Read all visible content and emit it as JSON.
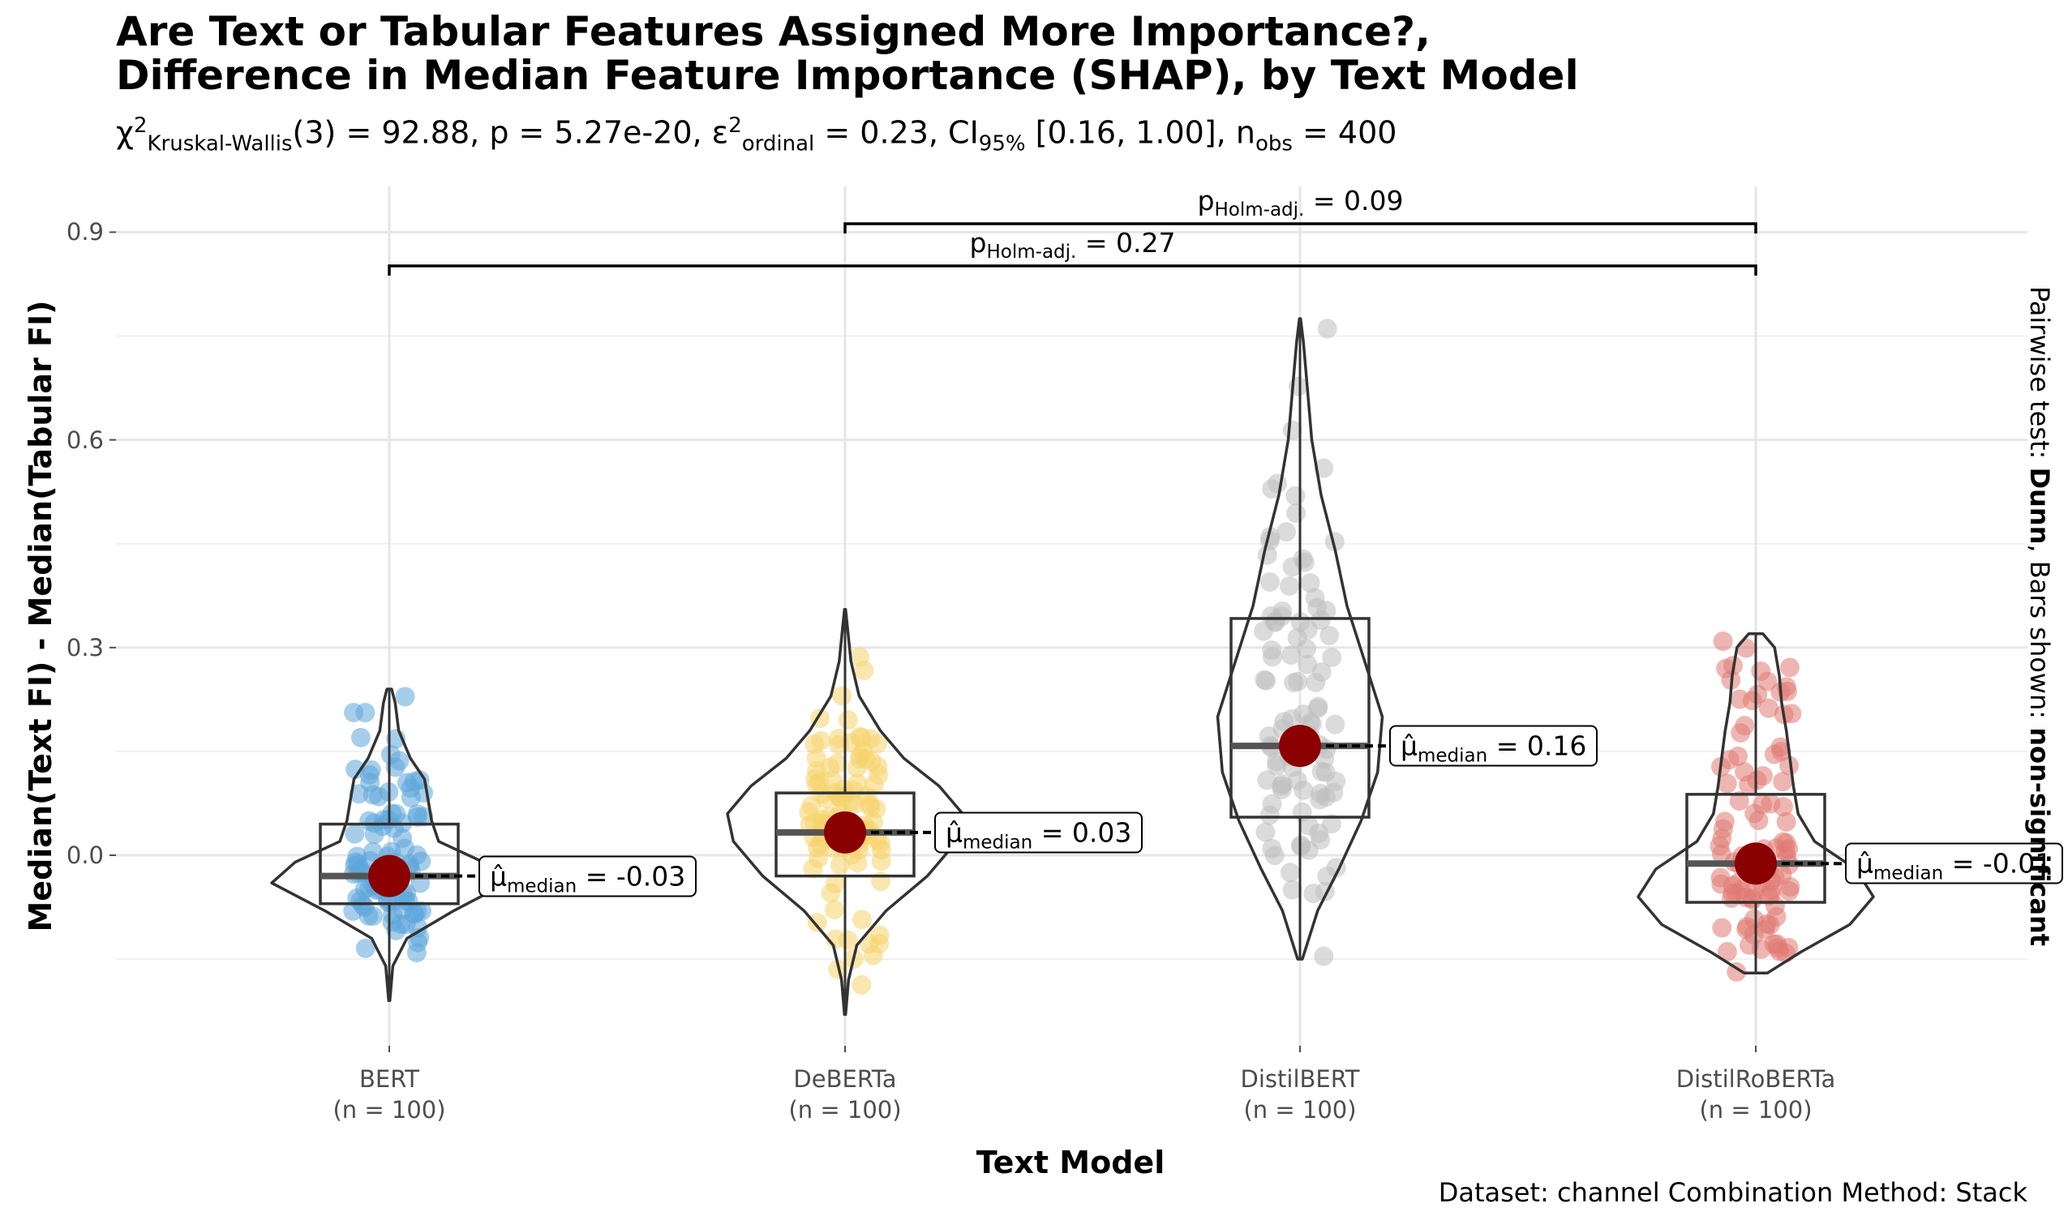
{
  "title": {
    "line1": "Are Text or Tabular Features Assigned More Importance?,",
    "line2": "Difference in Median Feature Importance (SHAP), by Text Model"
  },
  "subtitle": {
    "chi_symbol": "χ",
    "chi_sup": "2",
    "test_sub": "Kruskal-Wallis",
    "stat_part": "(3) = 92.88, p = 5.27e-20, ",
    "eps_symbol": "ε",
    "eps_sup": "2",
    "eps_sub": "ordinal",
    "eps_part": " = 0.23, CI",
    "ci_sub": "95%",
    "ci_part": " [0.16, 1.00], n",
    "n_sub": "obs",
    "n_part": " = 400"
  },
  "axes": {
    "ylabel": "Median(Text FI) - Median(Tabular FI)",
    "xlabel": "Text Model",
    "yticks": [
      "0.0",
      "0.3",
      "0.6",
      "0.9"
    ]
  },
  "right_label": {
    "prefix": "Pairwise test: ",
    "test": "Dunn",
    "middle": ", Bars shown: ",
    "shown": "non-significant"
  },
  "caption": "Dataset:  channel Combination Method:  Stack",
  "pairwise": [
    {
      "p_prefix": "p",
      "p_sub": "Holm-adj.",
      "p_value": " = 0.09"
    },
    {
      "p_prefix": "p",
      "p_sub": "Holm-adj.",
      "p_value": " = 0.27"
    }
  ],
  "groups": [
    {
      "name": "BERT",
      "n_label": "(n = 100)",
      "median_prefix": "μ̂",
      "median_sub": "median",
      "median_text": " = -0.03"
    },
    {
      "name": "DeBERTa",
      "n_label": "(n = 100)",
      "median_prefix": "μ̂",
      "median_sub": "median",
      "median_text": " = 0.03"
    },
    {
      "name": "DistilBERT",
      "n_label": "(n = 100)",
      "median_prefix": "μ̂",
      "median_sub": "median",
      "median_text": " = 0.16"
    },
    {
      "name": "DistilRoBERTa",
      "n_label": "(n = 100)",
      "median_prefix": "μ̂",
      "median_sub": "median",
      "median_text": " = -0.01"
    }
  ],
  "chart_data": {
    "type": "violin",
    "categories": [
      "BERT",
      "DeBERTa",
      "DistilBERT",
      "DistilRoBERTa"
    ],
    "ylim": [
      -0.2,
      0.95
    ],
    "yticks": [
      0.0,
      0.3,
      0.6,
      0.9
    ],
    "grid": true,
    "colors": {
      "BERT": "#5DA5DA",
      "DeBERTa": "#F5D36B",
      "DistilBERT": "#BDBDBD",
      "DistilRoBERTa": "#E07A73",
      "median_point": "#8B0000",
      "outline": "#333333"
    },
    "groups": [
      {
        "name": "BERT",
        "min": -0.21,
        "q1": -0.07,
        "median": -0.03,
        "q3": 0.045,
        "max": 0.24,
        "violin": [
          [
            -0.21,
            0.005
          ],
          [
            -0.16,
            0.03
          ],
          [
            -0.12,
            0.15
          ],
          [
            -0.08,
            0.55
          ],
          [
            -0.04,
            1.0
          ],
          [
            -0.01,
            0.8
          ],
          [
            0.02,
            0.42
          ],
          [
            0.05,
            0.36
          ],
          [
            0.08,
            0.33
          ],
          [
            0.11,
            0.3
          ],
          [
            0.14,
            0.18
          ],
          [
            0.18,
            0.08
          ],
          [
            0.22,
            0.05
          ],
          [
            0.24,
            0.02
          ]
        ]
      },
      {
        "name": "DeBERTa",
        "min": -0.23,
        "q1": -0.03,
        "median": 0.033,
        "q3": 0.09,
        "max": 0.355,
        "violin": [
          [
            -0.23,
            0.005
          ],
          [
            -0.18,
            0.03
          ],
          [
            -0.13,
            0.1
          ],
          [
            -0.08,
            0.35
          ],
          [
            -0.03,
            0.7
          ],
          [
            0.02,
            0.95
          ],
          [
            0.06,
            1.0
          ],
          [
            0.1,
            0.8
          ],
          [
            0.14,
            0.5
          ],
          [
            0.18,
            0.3
          ],
          [
            0.23,
            0.12
          ],
          [
            0.28,
            0.05
          ],
          [
            0.33,
            0.02
          ],
          [
            0.355,
            0.005
          ]
        ]
      },
      {
        "name": "DistilBERT",
        "min": -0.15,
        "q1": 0.055,
        "median": 0.158,
        "q3": 0.342,
        "max": 0.775,
        "violin": [
          [
            -0.15,
            0.02
          ],
          [
            -0.08,
            0.15
          ],
          [
            -0.02,
            0.33
          ],
          [
            0.05,
            0.52
          ],
          [
            0.12,
            0.66
          ],
          [
            0.2,
            0.7
          ],
          [
            0.28,
            0.55
          ],
          [
            0.36,
            0.4
          ],
          [
            0.44,
            0.3
          ],
          [
            0.52,
            0.18
          ],
          [
            0.6,
            0.1
          ],
          [
            0.68,
            0.06
          ],
          [
            0.74,
            0.03
          ],
          [
            0.775,
            0.005
          ]
        ]
      },
      {
        "name": "DistilRoBERTa",
        "min": -0.17,
        "q1": -0.068,
        "median": -0.012,
        "q3": 0.088,
        "max": 0.32,
        "violin": [
          [
            -0.17,
            0.1
          ],
          [
            -0.14,
            0.38
          ],
          [
            -0.1,
            0.8
          ],
          [
            -0.06,
            1.0
          ],
          [
            -0.02,
            0.85
          ],
          [
            0.02,
            0.5
          ],
          [
            0.06,
            0.36
          ],
          [
            0.1,
            0.32
          ],
          [
            0.14,
            0.29
          ],
          [
            0.18,
            0.26
          ],
          [
            0.22,
            0.22
          ],
          [
            0.26,
            0.2
          ],
          [
            0.3,
            0.16
          ],
          [
            0.32,
            0.06
          ]
        ]
      }
    ],
    "pairwise_bars": [
      {
        "from": "DeBERTa",
        "to": "DistilRoBERTa",
        "p_holm_adj": 0.09
      },
      {
        "from": "BERT",
        "to": "DistilRoBERTa",
        "p_holm_adj": 0.27
      }
    ]
  }
}
